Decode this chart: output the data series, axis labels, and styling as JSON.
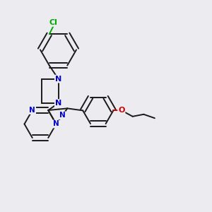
{
  "background_color": "#ebebf0",
  "bond_color": "#1a1a1a",
  "nitrogen_color": "#0000cc",
  "oxygen_color": "#cc0000",
  "chlorine_color": "#00aa00",
  "line_width": 1.4,
  "figsize": [
    3.0,
    3.0
  ],
  "dpi": 100,
  "xlim": [
    0.0,
    1.0
  ],
  "ylim": [
    0.0,
    1.0
  ]
}
